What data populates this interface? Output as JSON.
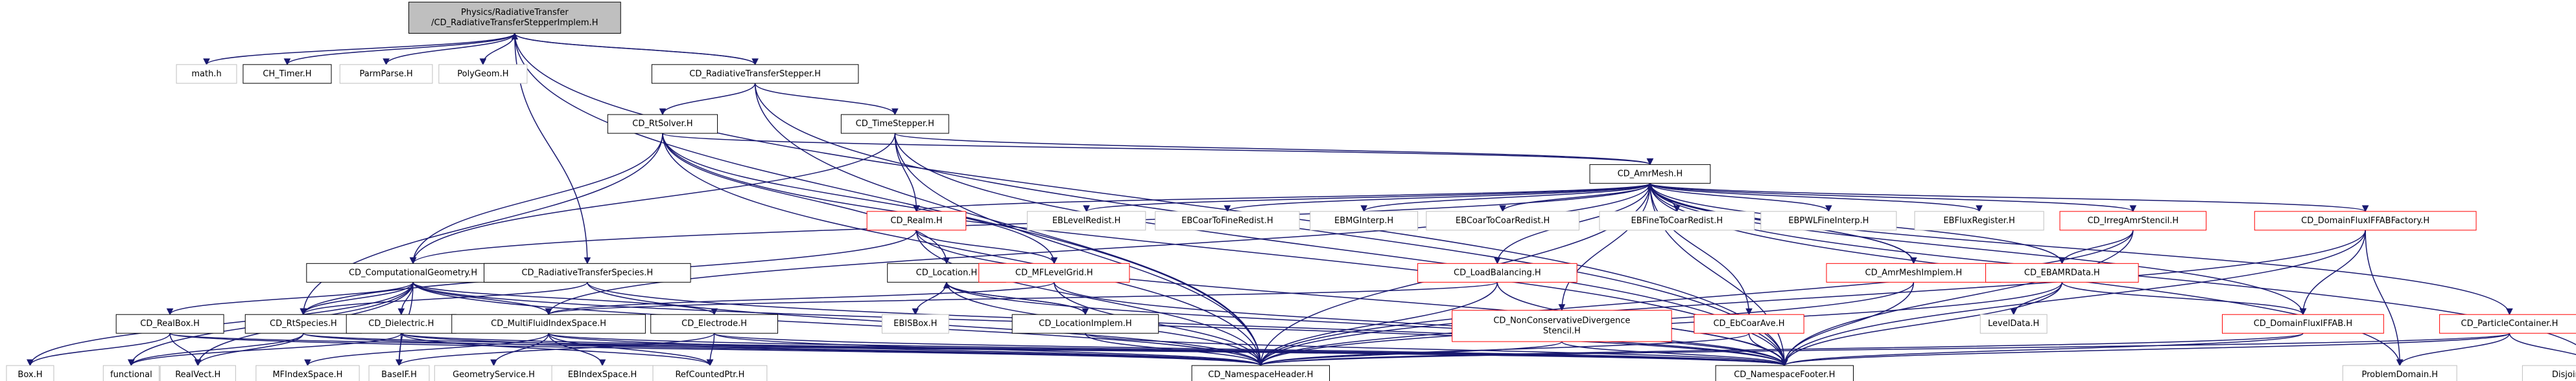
{
  "colors": {
    "edge": "#191970",
    "root_fill": "#bfbfbf",
    "doc_border": "#000000",
    "external_border": "#bfbfbf",
    "missing_border": "#ff0000"
  },
  "nodes": [
    {
      "id": "root",
      "kind": "root",
      "lines": [
        "Physics/RadiativeTransfer",
        "/CD_RadiativeTransferStepperImplem.H"
      ]
    },
    {
      "id": "math",
      "kind": "ext",
      "lines": [
        "math.h"
      ]
    },
    {
      "id": "ch_timer",
      "kind": "doc",
      "lines": [
        "CH_Timer.H"
      ]
    },
    {
      "id": "parmparse",
      "kind": "ext",
      "lines": [
        "ParmParse.H"
      ]
    },
    {
      "id": "polygeom",
      "kind": "ext",
      "lines": [
        "PolyGeom.H"
      ]
    },
    {
      "id": "rt_stepper",
      "kind": "doc",
      "lines": [
        "CD_RadiativeTransferStepper.H"
      ]
    },
    {
      "id": "rtsolver",
      "kind": "doc",
      "lines": [
        "CD_RtSolver.H"
      ]
    },
    {
      "id": "timestepper",
      "kind": "doc",
      "lines": [
        "CD_TimeStepper.H"
      ]
    },
    {
      "id": "amrmesh",
      "kind": "doc",
      "lines": [
        "CD_AmrMesh.H"
      ]
    },
    {
      "id": "realm",
      "kind": "red",
      "lines": [
        "CD_Realm.H"
      ]
    },
    {
      "id": "eblevelredist",
      "kind": "ext",
      "lines": [
        "EBLevelRedist.H"
      ]
    },
    {
      "id": "ebcoartofineredist",
      "kind": "ext",
      "lines": [
        "EBCoarToFineRedist.H"
      ]
    },
    {
      "id": "ebmginterp",
      "kind": "ext",
      "lines": [
        "EBMGInterp.H"
      ]
    },
    {
      "id": "ebcoartocoarredist",
      "kind": "ext",
      "lines": [
        "EBCoarToCoarRedist.H"
      ]
    },
    {
      "id": "ebfinetocoarredist",
      "kind": "ext",
      "lines": [
        "EBFineToCoarRedist.H"
      ]
    },
    {
      "id": "ebpwlfineinterp",
      "kind": "ext",
      "lines": [
        "EBPWLFineInterp.H"
      ]
    },
    {
      "id": "ebfluxregister",
      "kind": "ext",
      "lines": [
        "EBFluxRegister.H"
      ]
    },
    {
      "id": "irregamrstencil",
      "kind": "red",
      "lines": [
        "CD_IrregAmrStencil.H"
      ]
    },
    {
      "id": "domainfluxfactory",
      "kind": "red",
      "lines": [
        "CD_DomainFluxIFFABFactory.H"
      ]
    },
    {
      "id": "compgeom",
      "kind": "doc",
      "lines": [
        "CD_ComputationalGeometry.H"
      ]
    },
    {
      "id": "rtspecies",
      "kind": "doc",
      "lines": [
        "CD_RadiativeTransferSpecies.H"
      ]
    },
    {
      "id": "location",
      "kind": "doc",
      "lines": [
        "CD_Location.H"
      ]
    },
    {
      "id": "mflevelgrid",
      "kind": "red",
      "lines": [
        "CD_MFLevelGrid.H"
      ]
    },
    {
      "id": "loadbalancing",
      "kind": "red",
      "lines": [
        "CD_LoadBalancing.H"
      ]
    },
    {
      "id": "amrmeshimplem",
      "kind": "red",
      "lines": [
        "CD_AmrMeshImplem.H"
      ]
    },
    {
      "id": "ebamrdata",
      "kind": "red",
      "lines": [
        "CD_EBAMRData.H"
      ]
    },
    {
      "id": "realbox",
      "kind": "doc",
      "lines": [
        "CD_RealBox.H"
      ]
    },
    {
      "id": "rtspeciesh",
      "kind": "doc",
      "lines": [
        "CD_RtSpecies.H"
      ]
    },
    {
      "id": "dielectric",
      "kind": "doc",
      "lines": [
        "CD_Dielectric.H"
      ]
    },
    {
      "id": "multifluid",
      "kind": "doc",
      "lines": [
        "CD_MultiFluidIndexSpace.H"
      ]
    },
    {
      "id": "electrode",
      "kind": "doc",
      "lines": [
        "CD_Electrode.H"
      ]
    },
    {
      "id": "ebisbox",
      "kind": "ext",
      "lines": [
        "EBISBox.H"
      ]
    },
    {
      "id": "locationimplem",
      "kind": "doc",
      "lines": [
        "CD_LocationImplem.H"
      ]
    },
    {
      "id": "nonconservative",
      "kind": "red",
      "lines": [
        "CD_NonConservativeDivergence",
        "Stencil.H"
      ]
    },
    {
      "id": "ebcoarave",
      "kind": "red",
      "lines": [
        "CD_EbCoarAve.H"
      ]
    },
    {
      "id": "leveldata",
      "kind": "ext",
      "lines": [
        "LevelData.H"
      ]
    },
    {
      "id": "domainfluxfab",
      "kind": "red",
      "lines": [
        "CD_DomainFluxIFFAB.H"
      ]
    },
    {
      "id": "particlecontainer",
      "kind": "red",
      "lines": [
        "CD_ParticleContainer.H"
      ]
    },
    {
      "id": "box",
      "kind": "ext",
      "lines": [
        "Box.H"
      ]
    },
    {
      "id": "functional",
      "kind": "ext",
      "lines": [
        "functional"
      ]
    },
    {
      "id": "realvect",
      "kind": "ext",
      "lines": [
        "RealVect.H"
      ]
    },
    {
      "id": "mfindexspace",
      "kind": "ext",
      "lines": [
        "MFIndexSpace.H"
      ]
    },
    {
      "id": "baseif",
      "kind": "ext",
      "lines": [
        "BaseIF.H"
      ]
    },
    {
      "id": "geometryservice",
      "kind": "ext",
      "lines": [
        "GeometryService.H"
      ]
    },
    {
      "id": "ebindexspace",
      "kind": "ext",
      "lines": [
        "EBIndexSpace.H"
      ]
    },
    {
      "id": "refcountedptr",
      "kind": "ext",
      "lines": [
        "RefCountedPtr.H"
      ]
    },
    {
      "id": "nsheader",
      "kind": "doc",
      "lines": [
        "CD_NamespaceHeader.H"
      ]
    },
    {
      "id": "nsfooter",
      "kind": "doc",
      "lines": [
        "CD_NamespaceFooter.H"
      ]
    },
    {
      "id": "problemdomain",
      "kind": "ext",
      "lines": [
        "ProblemDomain.H"
      ]
    },
    {
      "id": "disjointboxlayout",
      "kind": "ext",
      "lines": [
        "DisjointBoxLayout.H"
      ]
    }
  ],
  "edges": [
    [
      "root",
      "math"
    ],
    [
      "root",
      "ch_timer"
    ],
    [
      "root",
      "parmparse"
    ],
    [
      "root",
      "polygeom"
    ],
    [
      "root",
      "rt_stepper"
    ],
    [
      "root",
      "rtspecies"
    ],
    [
      "root",
      "nsheader"
    ],
    [
      "root",
      "nsfooter"
    ],
    [
      "rt_stepper",
      "rtsolver"
    ],
    [
      "rt_stepper",
      "timestepper"
    ],
    [
      "rt_stepper",
      "nsheader"
    ],
    [
      "rt_stepper",
      "nsfooter"
    ],
    [
      "rt_stepper",
      "root"
    ],
    [
      "rtsolver",
      "amrmesh"
    ],
    [
      "rtsolver",
      "compgeom"
    ],
    [
      "rtsolver",
      "rtspeciesh"
    ],
    [
      "rtsolver",
      "mflevelgrid"
    ],
    [
      "rtsolver",
      "location"
    ],
    [
      "rtsolver",
      "nsheader"
    ],
    [
      "rtsolver",
      "nsfooter"
    ],
    [
      "timestepper",
      "amrmesh"
    ],
    [
      "timestepper",
      "compgeom"
    ],
    [
      "timestepper",
      "realm"
    ],
    [
      "timestepper",
      "nsheader"
    ],
    [
      "timestepper",
      "nsfooter"
    ],
    [
      "amrmesh",
      "eblevelredist"
    ],
    [
      "amrmesh",
      "ebcoartofineredist"
    ],
    [
      "amrmesh",
      "ebmginterp"
    ],
    [
      "amrmesh",
      "ebcoartocoarredist"
    ],
    [
      "amrmesh",
      "ebfinetocoarredist"
    ],
    [
      "amrmesh",
      "ebpwlfineinterp"
    ],
    [
      "amrmesh",
      "ebfluxregister"
    ],
    [
      "amrmesh",
      "irregamrstencil"
    ],
    [
      "amrmesh",
      "domainfluxfactory"
    ],
    [
      "amrmesh",
      "realm"
    ],
    [
      "amrmesh",
      "compgeom"
    ],
    [
      "amrmesh",
      "multifluid"
    ],
    [
      "amrmesh",
      "loadbalancing"
    ],
    [
      "amrmesh",
      "amrmeshimplem"
    ],
    [
      "amrmesh",
      "ebamrdata"
    ],
    [
      "amrmesh",
      "nonconservative"
    ],
    [
      "amrmesh",
      "ebcoarave"
    ],
    [
      "amrmesh",
      "domainfluxfab"
    ],
    [
      "amrmesh",
      "particlecontainer"
    ],
    [
      "amrmesh",
      "nsheader"
    ],
    [
      "amrmesh",
      "nsfooter"
    ],
    [
      "amrmesh",
      "disjointboxlayout"
    ],
    [
      "amrmesh",
      "problemdomain"
    ],
    [
      "realm",
      "mflevelgrid"
    ],
    [
      "realm",
      "rtspeciesh"
    ],
    [
      "realm",
      "nsheader"
    ],
    [
      "realm",
      "nsfooter"
    ],
    [
      "irregamrstencil",
      "ebamrdata"
    ],
    [
      "irregamrstencil",
      "nsheader"
    ],
    [
      "irregamrstencil",
      "nsfooter"
    ],
    [
      "domainfluxfactory",
      "domainfluxfab"
    ],
    [
      "domainfluxfactory",
      "nsheader"
    ],
    [
      "domainfluxfactory",
      "nsfooter"
    ],
    [
      "domainfluxfactory",
      "problemdomain"
    ],
    [
      "compgeom",
      "realbox"
    ],
    [
      "compgeom",
      "rtspeciesh"
    ],
    [
      "compgeom",
      "dielectric"
    ],
    [
      "compgeom",
      "multifluid"
    ],
    [
      "compgeom",
      "electrode"
    ],
    [
      "compgeom",
      "box"
    ],
    [
      "compgeom",
      "functional"
    ],
    [
      "compgeom",
      "realvect"
    ],
    [
      "compgeom",
      "baseif"
    ],
    [
      "compgeom",
      "nsheader"
    ],
    [
      "compgeom",
      "nsfooter"
    ],
    [
      "rtspecies",
      "rtspeciesh"
    ],
    [
      "rtspecies",
      "nsheader"
    ],
    [
      "rtspecies",
      "nsfooter"
    ],
    [
      "location",
      "ebisbox"
    ],
    [
      "location",
      "locationimplem"
    ],
    [
      "location",
      "nsheader"
    ],
    [
      "location",
      "nsfooter"
    ],
    [
      "mflevelgrid",
      "multifluid"
    ],
    [
      "mflevelgrid",
      "nsheader"
    ],
    [
      "mflevelgrid",
      "nsfooter"
    ],
    [
      "loadbalancing",
      "multifluid"
    ],
    [
      "loadbalancing",
      "nsheader"
    ],
    [
      "loadbalancing",
      "nsfooter"
    ],
    [
      "amrmeshimplem",
      "nsheader"
    ],
    [
      "amrmeshimplem",
      "nsfooter"
    ],
    [
      "amrmeshimplem",
      "amrmesh"
    ],
    [
      "ebamrdata",
      "leveldata"
    ],
    [
      "ebamrdata",
      "domainfluxfab"
    ],
    [
      "ebamrdata",
      "nsheader"
    ],
    [
      "ebamrdata",
      "nsfooter"
    ],
    [
      "realbox",
      "box"
    ],
    [
      "realbox",
      "realvect"
    ],
    [
      "realbox",
      "nsheader"
    ],
    [
      "realbox",
      "nsfooter"
    ],
    [
      "rtspeciesh",
      "functional"
    ],
    [
      "rtspeciesh",
      "realvect"
    ],
    [
      "rtspeciesh",
      "nsheader"
    ],
    [
      "rtspeciesh",
      "nsfooter"
    ],
    [
      "dielectric",
      "functional"
    ],
    [
      "dielectric",
      "baseif"
    ],
    [
      "dielectric",
      "refcountedptr"
    ],
    [
      "dielectric",
      "nsheader"
    ],
    [
      "dielectric",
      "nsfooter"
    ],
    [
      "multifluid",
      "mfindexspace"
    ],
    [
      "multifluid",
      "geometryservice"
    ],
    [
      "multifluid",
      "ebindexspace"
    ],
    [
      "multifluid",
      "refcountedptr"
    ],
    [
      "multifluid",
      "nsheader"
    ],
    [
      "multifluid",
      "nsfooter"
    ],
    [
      "electrode",
      "baseif"
    ],
    [
      "electrode",
      "refcountedptr"
    ],
    [
      "electrode",
      "nsheader"
    ],
    [
      "electrode",
      "nsfooter"
    ],
    [
      "locationimplem",
      "nsheader"
    ],
    [
      "locationimplem",
      "nsfooter"
    ],
    [
      "locationimplem",
      "location"
    ],
    [
      "nonconservative",
      "nsheader"
    ],
    [
      "nonconservative",
      "nsfooter"
    ],
    [
      "ebcoarave",
      "nsheader"
    ],
    [
      "ebcoarave",
      "nsfooter"
    ],
    [
      "domainfluxfab",
      "nsheader"
    ],
    [
      "domainfluxfab",
      "nsfooter"
    ],
    [
      "particlecontainer",
      "nsheader"
    ],
    [
      "particlecontainer",
      "nsfooter"
    ],
    [
      "particlecontainer",
      "problemdomain"
    ],
    [
      "particlecontainer",
      "disjointboxlayout"
    ]
  ]
}
